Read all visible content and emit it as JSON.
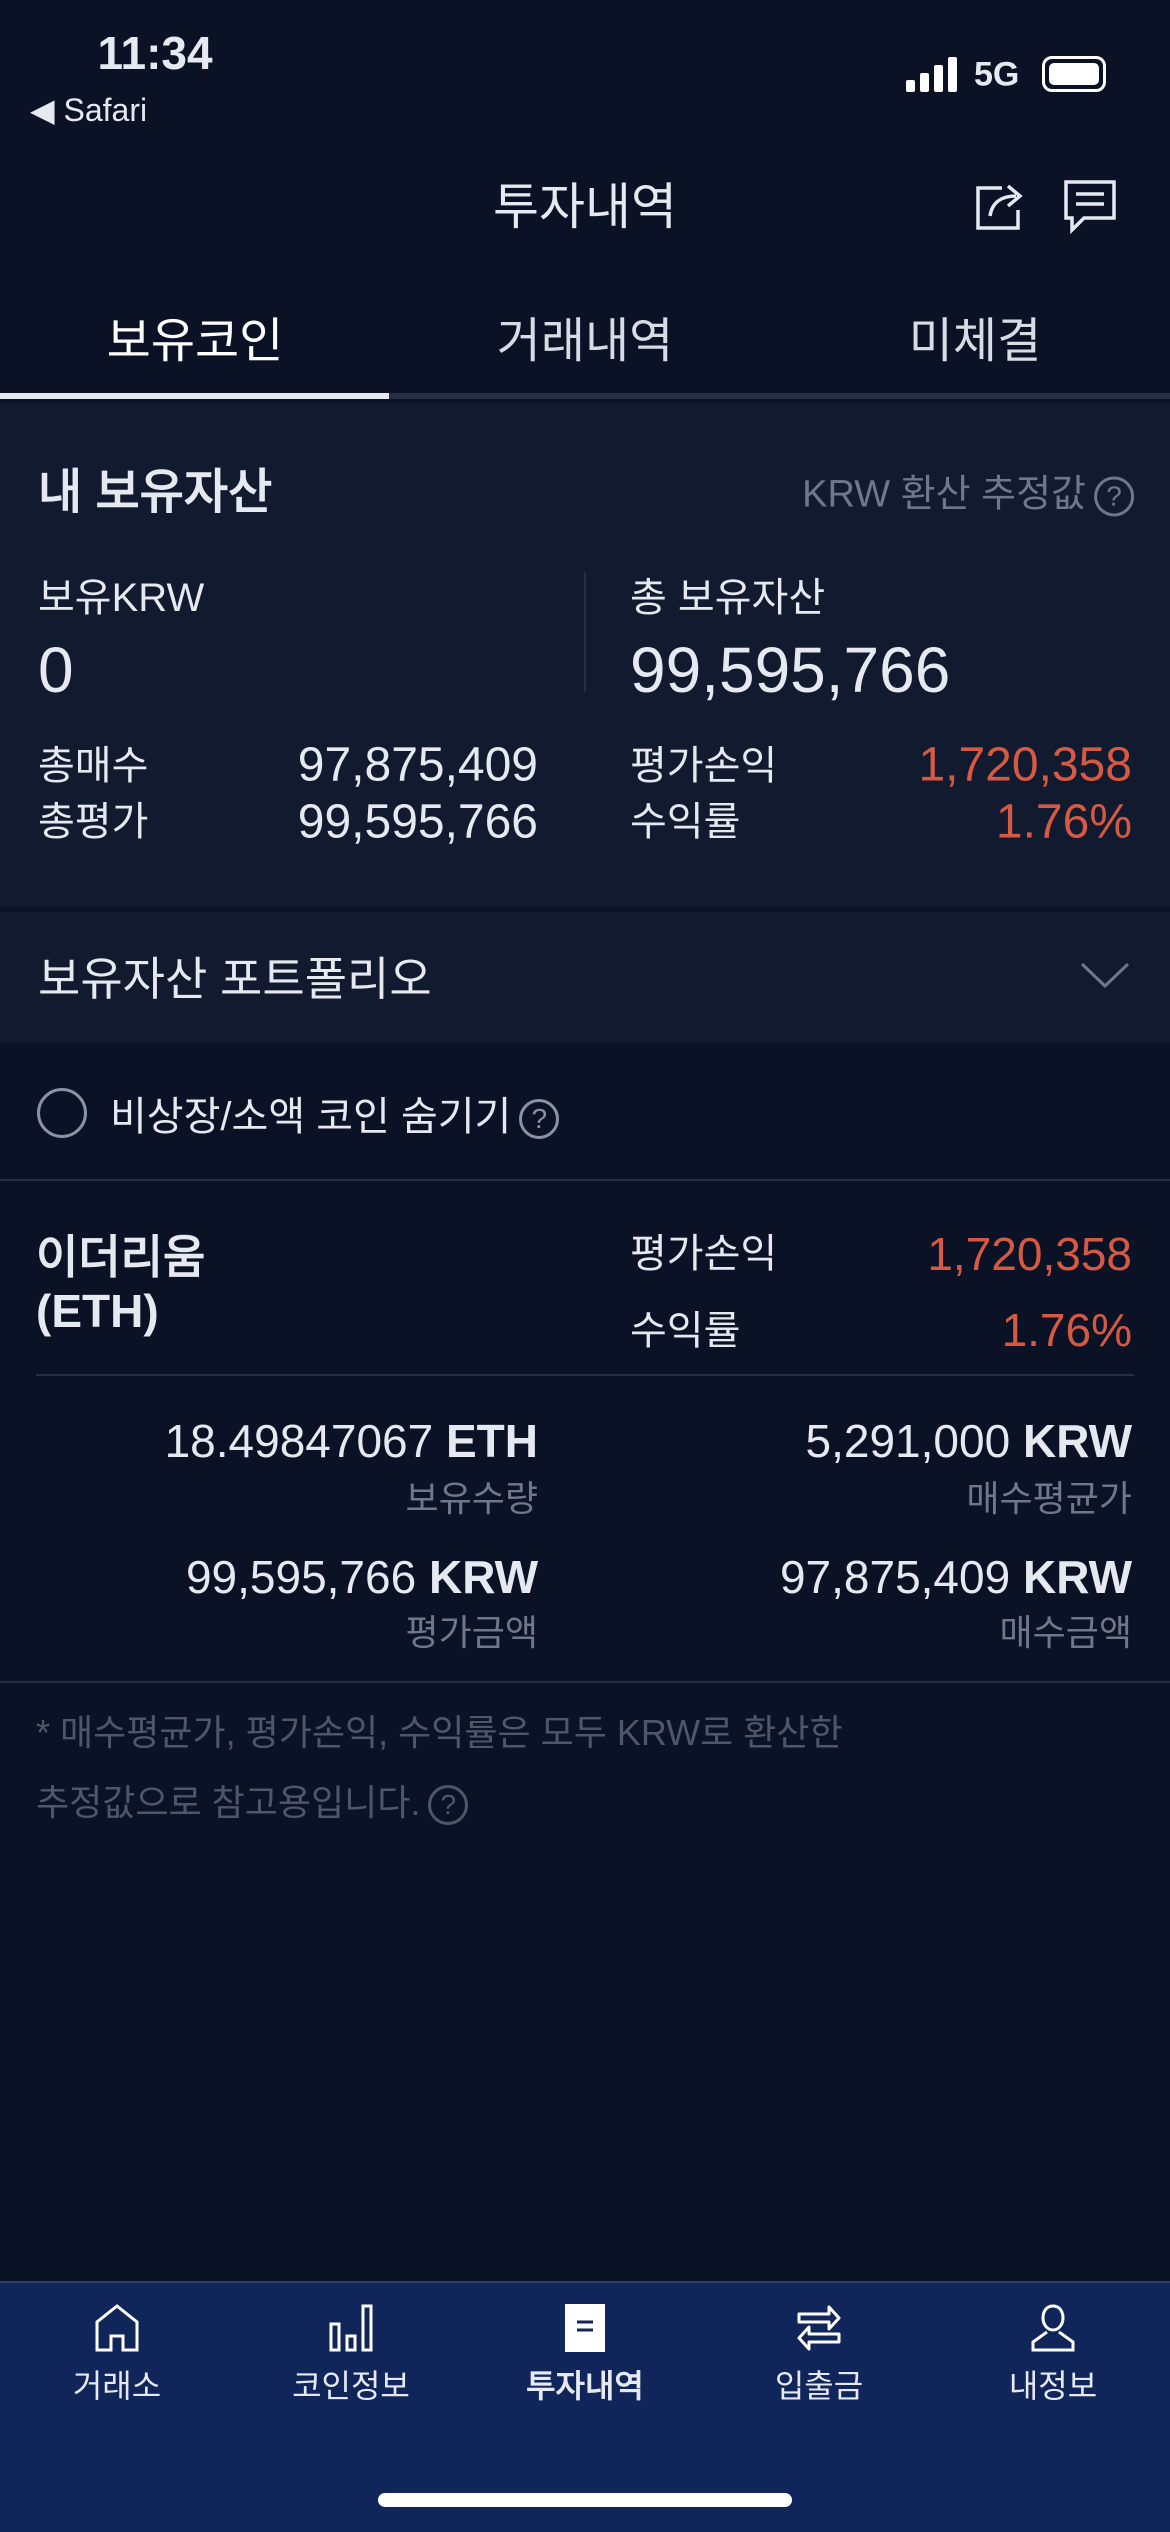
{
  "status_bar": {
    "time": "11:34",
    "back_app": "◀ Safari",
    "network": "5G"
  },
  "header": {
    "title": "투자내역",
    "icons": [
      "share-icon",
      "chat-icon"
    ]
  },
  "tabs": [
    {
      "label": "보유코인",
      "active": true
    },
    {
      "label": "거래내역"
    },
    {
      "label": "미체결"
    }
  ],
  "summary": {
    "title": "내 보유자산",
    "krw_note": "KRW 환산 추정값",
    "krw_label": "보유KRW",
    "krw_value": "0",
    "total_label": "총 보유자산",
    "total_value": "99,595,766",
    "buy_label": "총매수",
    "buy_value": "97,875,409",
    "eval_label": "총평가",
    "eval_value": "99,595,766",
    "pl_label": "평가손익",
    "pl_value": "1,720,358",
    "rate_label": "수익률",
    "rate_value": "1.76%"
  },
  "portfolio": {
    "label": "보유자산 포트폴리오"
  },
  "hide_option": {
    "label": "비상장/소액 코인 숨기기",
    "checked": false
  },
  "holding": {
    "name": "이더리움",
    "symbol": "(ETH)",
    "pl_label": "평가손익",
    "pl_value": "1,720,358",
    "rate_label": "수익률",
    "rate_value": "1.76%",
    "qty_value": "18.49847067",
    "qty_unit": "ETH",
    "qty_label": "보유수량",
    "avg_value": "5,291,000",
    "avg_unit": "KRW",
    "avg_label": "매수평균가",
    "evalamt_value": "99,595,766",
    "evalamt_unit": "KRW",
    "evalamt_label": "평가금액",
    "buyamt_value": "97,875,409",
    "buyamt_unit": "KRW",
    "buyamt_label": "매수금액"
  },
  "note": {
    "line1": "* 매수평균가, 평가손익, 수익률은 모두 KRW로 환산한",
    "line2": "추정값으로 참고용입니다."
  },
  "bottom_nav": [
    {
      "label": "거래소",
      "icon": "home-icon"
    },
    {
      "label": "코인정보",
      "icon": "bar-chart-icon"
    },
    {
      "label": "투자내역",
      "icon": "document-icon",
      "active": true
    },
    {
      "label": "입출금",
      "icon": "transfer-icon"
    },
    {
      "label": "내정보",
      "icon": "person-icon"
    }
  ],
  "colors": {
    "background": "#0b1226",
    "panel": "#111a2e",
    "profit": "#d65a43",
    "nav": "#10265a"
  }
}
